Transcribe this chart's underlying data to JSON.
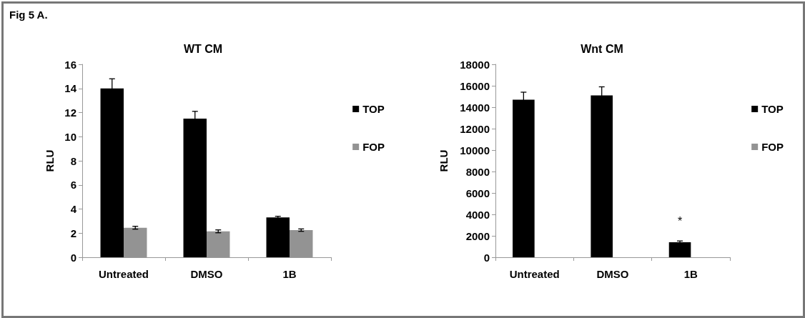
{
  "chart_data": [
    {
      "type": "bar",
      "title": "WT CM",
      "ylabel": "RLU",
      "annotations": [
        "Fig 5 A."
      ],
      "categories": [
        "Untreated",
        "DMSO",
        "1B"
      ],
      "series": [
        {
          "name": "TOP",
          "color": "#000000",
          "values": [
            14,
            11.5,
            3.3
          ],
          "errors": [
            0.8,
            0.6,
            0.1
          ]
        },
        {
          "name": "FOP",
          "color": "#939393",
          "values": [
            2.45,
            2.15,
            2.25
          ],
          "errors": [
            0.12,
            0.12,
            0.1
          ]
        }
      ],
      "ylim": [
        0,
        16
      ],
      "yticks": [
        0,
        2,
        4,
        6,
        8,
        10,
        12,
        14,
        16
      ],
      "grid": false,
      "legend": "right"
    },
    {
      "type": "bar",
      "title": "Wnt CM",
      "ylabel": "RLU",
      "annotations": [
        {
          "text": "*",
          "x": "1B",
          "y": 1400
        }
      ],
      "categories": [
        "Untreated",
        "DMSO",
        "1B"
      ],
      "series": [
        {
          "name": "TOP",
          "color": "#000000",
          "values": [
            14700,
            15100,
            1400
          ],
          "errors": [
            700,
            800,
            120
          ]
        },
        {
          "name": "FOP",
          "color": "#939393",
          "values": [
            0,
            0,
            0
          ]
        }
      ],
      "ylim": [
        0,
        18000
      ],
      "yticks": [
        0,
        2000,
        4000,
        6000,
        8000,
        10000,
        12000,
        14000,
        16000,
        18000
      ],
      "grid": false,
      "legend": "right"
    }
  ]
}
